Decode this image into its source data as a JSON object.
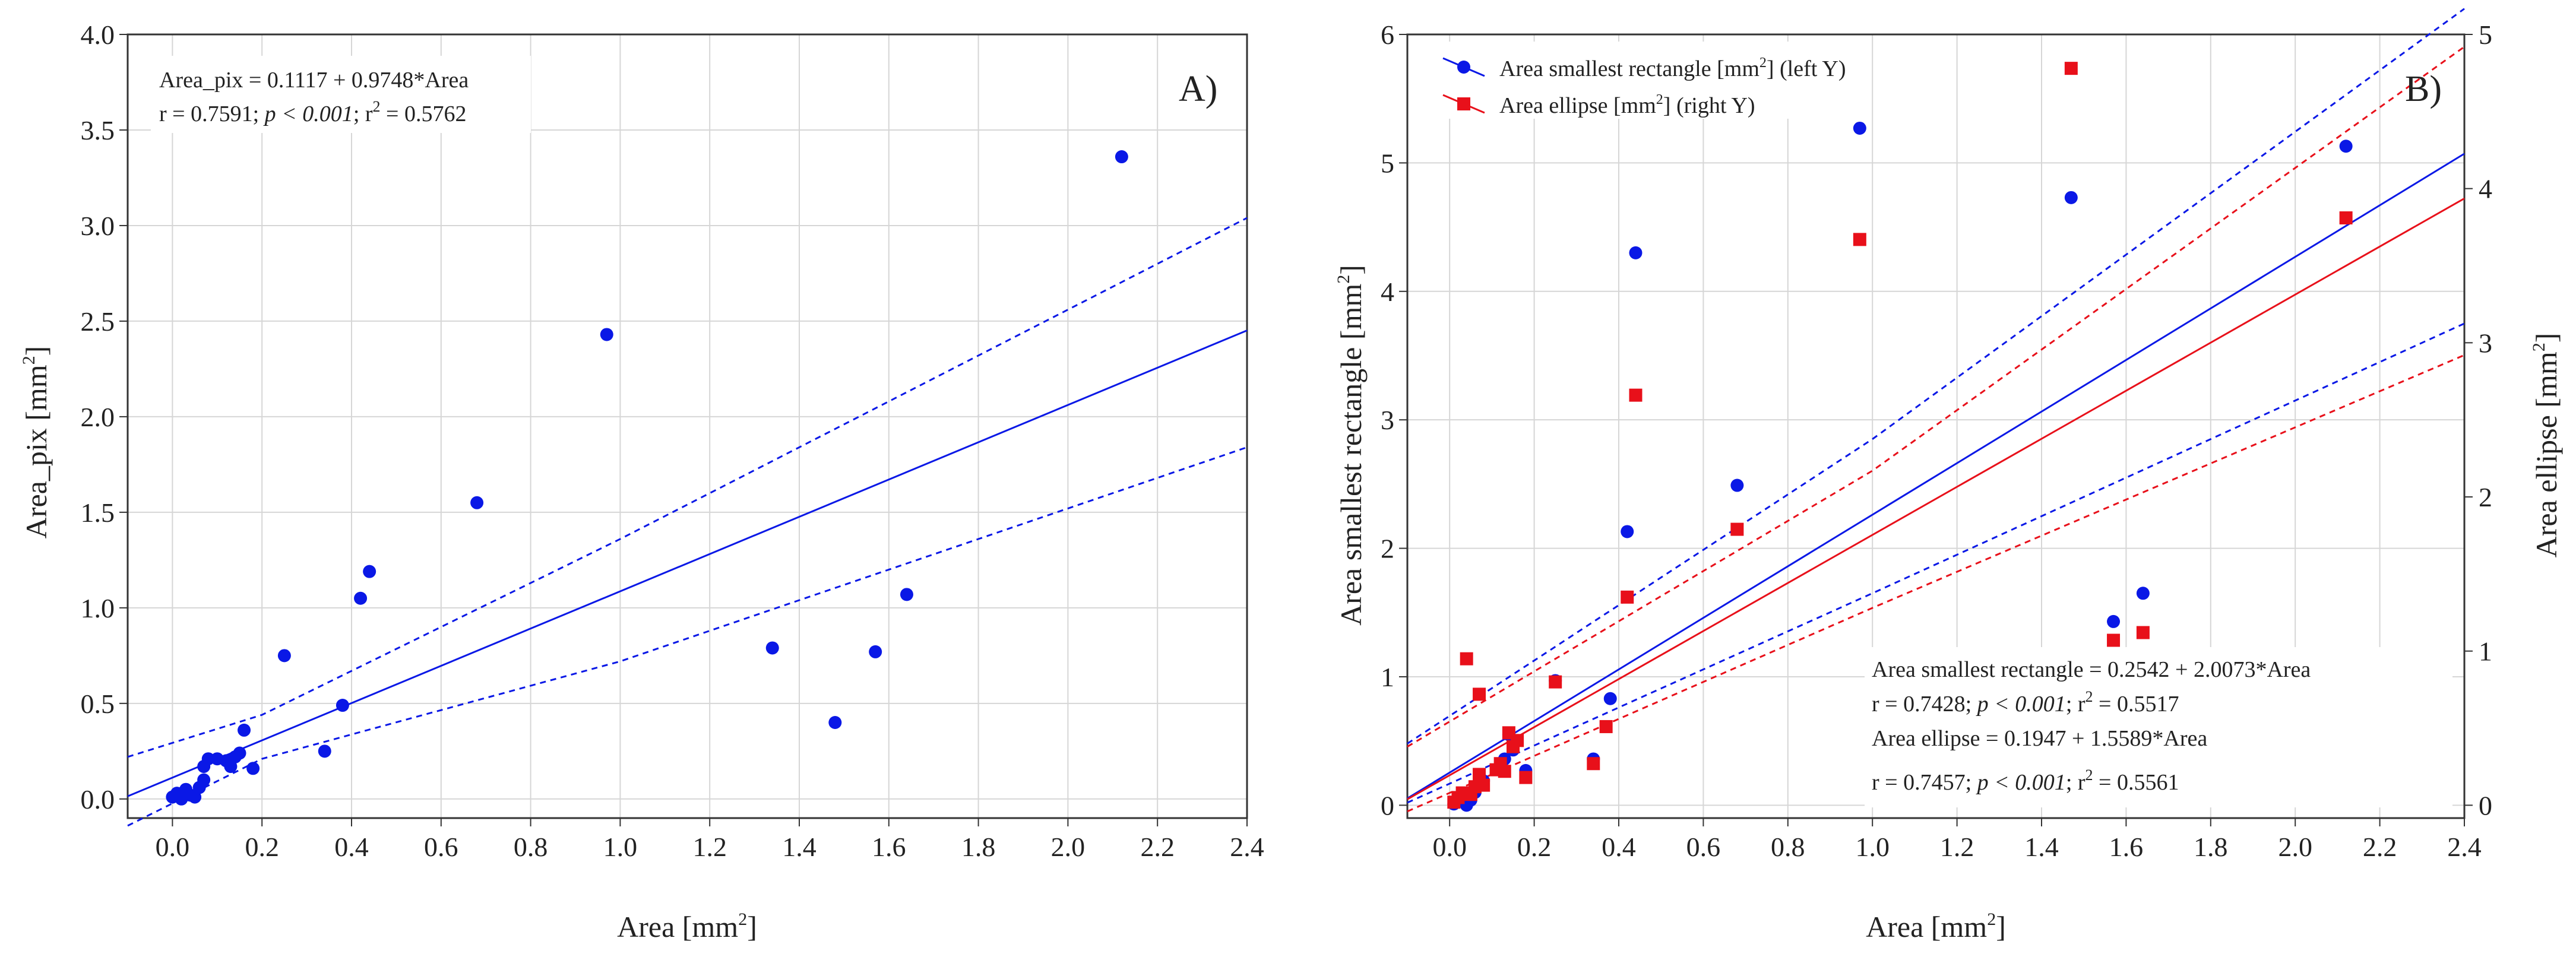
{
  "chart_data": [
    {
      "type": "scatter",
      "panel_label": "A)",
      "xlabel": "Area [mm",
      "xlabel_sup": "2",
      "xlabel_end": "]",
      "ylabel": "Area_pix [mm",
      "ylabel_sup": "2",
      "ylabel_end": "]",
      "xlim": [
        -0.1,
        2.4
      ],
      "ylim": [
        -0.1,
        4.0
      ],
      "xticks": [
        "0.0",
        "0.2",
        "0.4",
        "0.6",
        "0.8",
        "1.0",
        "1.2",
        "1.4",
        "1.6",
        "1.8",
        "2.0",
        "2.2",
        "2.4"
      ],
      "yticks": [
        "0.0",
        "0.5",
        "1.0",
        "1.5",
        "2.0",
        "2.5",
        "3.0",
        "3.5",
        "4.0"
      ],
      "grid": true,
      "annotation": {
        "line1": "Area_pix = 0.1117 + 0.9748*Area",
        "line2_a": "r = 0.7591; ",
        "line2_b": "p < 0.001",
        "line2_c": "; r",
        "line2_sup": "2",
        "line2_d": " = 0.5762"
      },
      "regression": {
        "intercept": 0.1117,
        "slope": 0.9748,
        "ci_lower_at": [
          [
            -0.1,
            -0.14
          ],
          [
            0.2,
            0.21
          ],
          [
            1.0,
            0.72
          ],
          [
            2.4,
            1.84
          ]
        ],
        "ci_upper_at": [
          [
            -0.1,
            0.22
          ],
          [
            0.2,
            0.44
          ],
          [
            1.0,
            1.36
          ],
          [
            2.4,
            3.04
          ]
        ]
      },
      "color": "#0a18e6",
      "points": [
        [
          0.0,
          0.01
        ],
        [
          0.01,
          0.03
        ],
        [
          0.02,
          0.0
        ],
        [
          0.03,
          0.05
        ],
        [
          0.04,
          0.02
        ],
        [
          0.05,
          0.01
        ],
        [
          0.06,
          0.06
        ],
        [
          0.07,
          0.1
        ],
        [
          0.07,
          0.17
        ],
        [
          0.08,
          0.21
        ],
        [
          0.1,
          0.21
        ],
        [
          0.12,
          0.2
        ],
        [
          0.13,
          0.17
        ],
        [
          0.14,
          0.22
        ],
        [
          0.15,
          0.24
        ],
        [
          0.16,
          0.36
        ],
        [
          0.18,
          0.16
        ],
        [
          0.25,
          0.75
        ],
        [
          0.34,
          0.25
        ],
        [
          0.38,
          0.49
        ],
        [
          0.42,
          1.05
        ],
        [
          0.44,
          1.19
        ],
        [
          0.68,
          1.55
        ],
        [
          0.97,
          2.43
        ],
        [
          1.34,
          0.79
        ],
        [
          1.48,
          0.4
        ],
        [
          1.57,
          0.77
        ],
        [
          1.64,
          1.07
        ],
        [
          2.12,
          3.36
        ]
      ]
    },
    {
      "type": "scatter",
      "panel_label": "B)",
      "xlabel": "Area [mm",
      "xlabel_sup": "2",
      "xlabel_end": "]",
      "ylabel_left": "Area smallest rectangle [mm",
      "ylabel_left_sup": "2",
      "ylabel_left_end": "]",
      "ylabel_right": "Area ellipse [mm",
      "ylabel_right_sup": "2",
      "ylabel_right_end": "]",
      "xlim": [
        -0.1,
        2.4
      ],
      "ylim_left": [
        -0.1,
        6.0
      ],
      "ylim_right": [
        -0.0833,
        5.0
      ],
      "xticks": [
        "0.0",
        "0.2",
        "0.4",
        "0.6",
        "0.8",
        "1.0",
        "1.2",
        "1.4",
        "1.6",
        "1.8",
        "2.0",
        "2.2",
        "2.4"
      ],
      "yticks_left": [
        "0",
        "1",
        "2",
        "3",
        "4",
        "5",
        "6"
      ],
      "yticks_right": [
        "0",
        "1",
        "2",
        "3",
        "4",
        "5"
      ],
      "grid": true,
      "legend": {
        "position": "top-left",
        "entries": [
          {
            "a": "Area smallest rectangle [mm",
            "sup": "2",
            "b": "] (left Y)",
            "color": "#0a18e6",
            "marker": "circle"
          },
          {
            "a": "Area ellipse [mm",
            "sup": "2",
            "b": "] (right Y)",
            "color": "#e8101a",
            "marker": "square"
          }
        ]
      },
      "annotation": {
        "l1": "Area smallest rectangle = 0.2542 + 2.0073*Area",
        "l2_a": "r = 0.7428; ",
        "l2_b": "p < 0.001",
        "l2_c": "; r",
        "l2_sup": "2",
        "l2_d": " = 0.5517",
        "l3": "Area ellipse = 0.1947 + 1.5589*Area",
        "l4_a": "r = 0.7457; ",
        "l4_b": "p < 0.001",
        "l4_c": "; r",
        "l4_sup": "2",
        "l4_d": " = 0.5561"
      },
      "series": [
        {
          "name": "Area smallest rectangle (left Y)",
          "axis": "left",
          "color": "#0a18e6",
          "regression": {
            "intercept": 0.2542,
            "slope": 2.0073,
            "ci_lower_at": [
              [
                -0.1,
                0.02
              ],
              [
                1.0,
                1.65
              ],
              [
                2.4,
                3.75
              ]
            ],
            "ci_upper_at": [
              [
                -0.1,
                0.48
              ],
              [
                1.0,
                2.85
              ],
              [
                2.4,
                6.2
              ]
            ]
          },
          "points": [
            [
              0.01,
              0.01
            ],
            [
              0.02,
              0.03
            ],
            [
              0.03,
              0.06
            ],
            [
              0.04,
              0.0
            ],
            [
              0.05,
              0.04
            ],
            [
              0.06,
              0.1
            ],
            [
              0.07,
              0.17
            ],
            [
              0.08,
              0.19
            ],
            [
              0.12,
              0.3
            ],
            [
              0.13,
              0.36
            ],
            [
              0.14,
              0.55
            ],
            [
              0.15,
              0.43
            ],
            [
              0.18,
              0.27
            ],
            [
              0.25,
              0.97
            ],
            [
              0.34,
              0.36
            ],
            [
              0.38,
              0.83
            ],
            [
              0.42,
              2.13
            ],
            [
              0.44,
              4.3
            ],
            [
              0.68,
              2.49
            ],
            [
              0.97,
              5.27
            ],
            [
              1.47,
              4.73
            ],
            [
              1.57,
              1.43
            ],
            [
              1.64,
              1.65
            ],
            [
              2.12,
              5.13
            ]
          ]
        },
        {
          "name": "Area ellipse (right Y)",
          "axis": "right",
          "color": "#e8101a",
          "regression": {
            "intercept": 0.1947,
            "slope": 1.5589,
            "ci_lower_at": [
              [
                -0.1,
                -0.04
              ],
              [
                1.0,
                1.28
              ],
              [
                2.4,
                2.92
              ]
            ],
            "ci_upper_at": [
              [
                -0.1,
                0.38
              ],
              [
                1.0,
                2.17
              ],
              [
                2.4,
                4.92
              ]
            ]
          },
          "points": [
            [
              0.01,
              0.02
            ],
            [
              0.02,
              0.05
            ],
            [
              0.03,
              0.08
            ],
            [
              0.04,
              0.95
            ],
            [
              0.05,
              0.07
            ],
            [
              0.06,
              0.12
            ],
            [
              0.07,
              0.2
            ],
            [
              0.07,
              0.72
            ],
            [
              0.08,
              0.13
            ],
            [
              0.11,
              0.23
            ],
            [
              0.12,
              0.27
            ],
            [
              0.13,
              0.22
            ],
            [
              0.14,
              0.47
            ],
            [
              0.15,
              0.38
            ],
            [
              0.16,
              0.42
            ],
            [
              0.18,
              0.18
            ],
            [
              0.25,
              0.8
            ],
            [
              0.34,
              0.27
            ],
            [
              0.37,
              0.51
            ],
            [
              0.42,
              1.35
            ],
            [
              0.44,
              2.66
            ],
            [
              0.68,
              1.79
            ],
            [
              0.97,
              3.67
            ],
            [
              1.47,
              4.78
            ],
            [
              1.57,
              1.07
            ],
            [
              1.64,
              1.12
            ],
            [
              2.12,
              3.81
            ]
          ]
        }
      ]
    }
  ]
}
